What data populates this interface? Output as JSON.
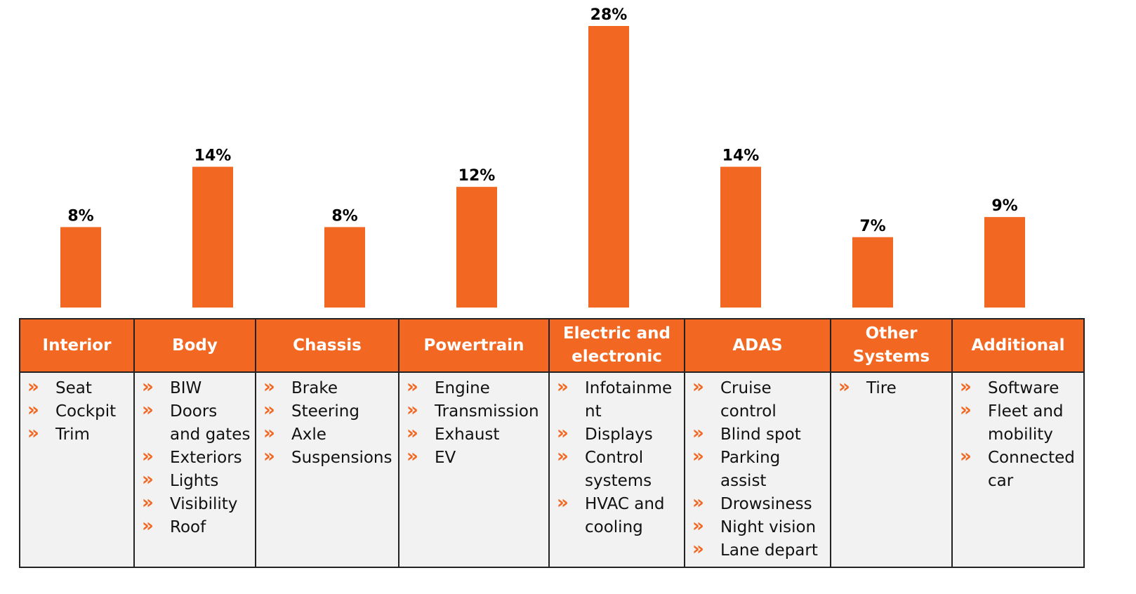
{
  "chart_data": {
    "type": "bar",
    "categories": [
      "Interior",
      "Body",
      "Chassis",
      "Powertrain",
      "Electric and electronic",
      "ADAS",
      "Other Systems",
      "Additional"
    ],
    "values": [
      8,
      14,
      8,
      12,
      28,
      14,
      7,
      9
    ],
    "value_labels": [
      "8%",
      "14%",
      "8%",
      "12%",
      "28%",
      "14%",
      "7%",
      "9%"
    ],
    "title": "",
    "xlabel": "",
    "ylabel": "",
    "ylim": [
      0,
      28
    ],
    "grid": false,
    "legend": "none"
  },
  "table": {
    "columns": [
      {
        "header": "Interior",
        "items": [
          "Seat",
          "Cockpit",
          "Trim"
        ]
      },
      {
        "header": "Body",
        "items": [
          "BIW",
          "Doors and gates",
          "Exteriors",
          "Lights",
          "Visibility",
          "Roof"
        ]
      },
      {
        "header": "Chassis",
        "items": [
          "Brake",
          "Steering",
          "Axle",
          "Suspensions"
        ]
      },
      {
        "header": "Powertrain",
        "items": [
          "Engine",
          "Transmission",
          "Exhaust",
          "EV"
        ]
      },
      {
        "header": "Electric and electronic",
        "items": [
          "Infotainment",
          "Displays",
          "Control systems",
          "HVAC and cooling"
        ]
      },
      {
        "header": "ADAS",
        "items": [
          "Cruise control",
          "Blind spot",
          "Parking assist",
          "Drowsiness",
          "Night vision",
          "Lane depart"
        ]
      },
      {
        "header": "Other Systems",
        "items": [
          "Tire"
        ]
      },
      {
        "header": "Additional",
        "items": [
          "Software",
          "Fleet and mobility",
          "Connected car"
        ]
      }
    ]
  },
  "bullet_glyph": "»",
  "colors": {
    "accent": "#f26822",
    "cell_background": "#f2f2f2",
    "border": "#222222",
    "header_text": "#ffffff"
  }
}
